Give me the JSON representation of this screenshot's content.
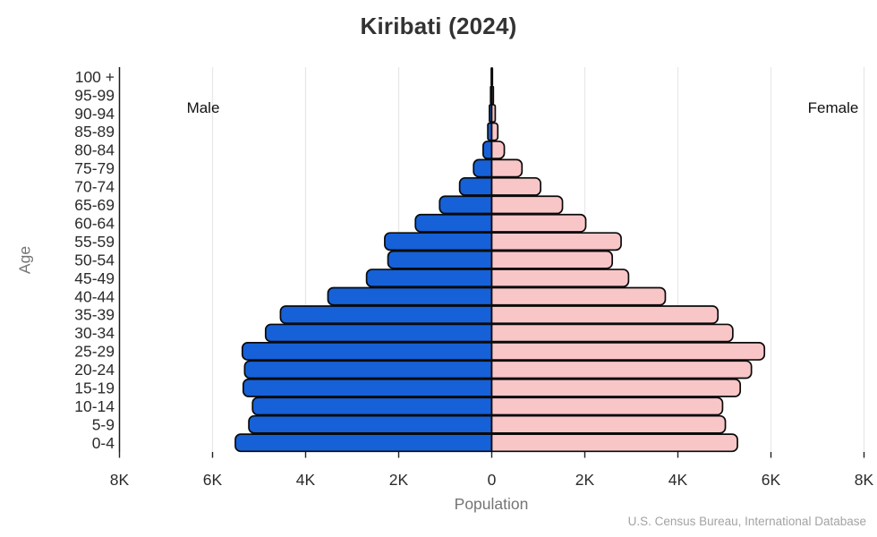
{
  "title": "Kiribati (2024)",
  "side_labels": {
    "male": "Male",
    "female": "Female"
  },
  "axis": {
    "y_label": "Age",
    "x_label": "Population"
  },
  "source": "U.S. Census Bureau, International Database",
  "chart_data": {
    "type": "bar",
    "subtype": "population-pyramid",
    "title": "Kiribati (2024)",
    "xlabel": "Population",
    "ylabel": "Age",
    "xlim": [
      -8000,
      8000
    ],
    "grid": true,
    "categories": [
      "100 +",
      "95-99",
      "90-94",
      "85-89",
      "80-84",
      "75-79",
      "70-74",
      "65-69",
      "60-64",
      "55-59",
      "50-54",
      "45-49",
      "40-44",
      "35-39",
      "30-34",
      "25-29",
      "20-24",
      "15-19",
      "10-14",
      "5-9",
      "0-4"
    ],
    "series": [
      {
        "name": "Male",
        "color": "#1661d7",
        "values": [
          10,
          25,
          50,
          85,
          185,
          390,
          690,
          1120,
          1640,
          2300,
          2230,
          2690,
          3520,
          4540,
          4860,
          5360,
          5310,
          5340,
          5140,
          5220,
          5510
        ]
      },
      {
        "name": "Female",
        "color": "#f9c6c8",
        "values": [
          15,
          35,
          75,
          130,
          270,
          650,
          1050,
          1520,
          2020,
          2780,
          2590,
          2940,
          3730,
          4860,
          5180,
          5860,
          5580,
          5340,
          4960,
          5020,
          5280
        ]
      }
    ],
    "x_ticks": [
      "8K",
      "6K",
      "4K",
      "2K",
      "0",
      "2K",
      "4K",
      "6K",
      "8K"
    ],
    "x_tick_values": [
      -8000,
      -6000,
      -4000,
      -2000,
      0,
      2000,
      4000,
      6000,
      8000
    ],
    "bar_outline_color": "#0a0a0a",
    "legend_position": "in-plot side labels"
  }
}
